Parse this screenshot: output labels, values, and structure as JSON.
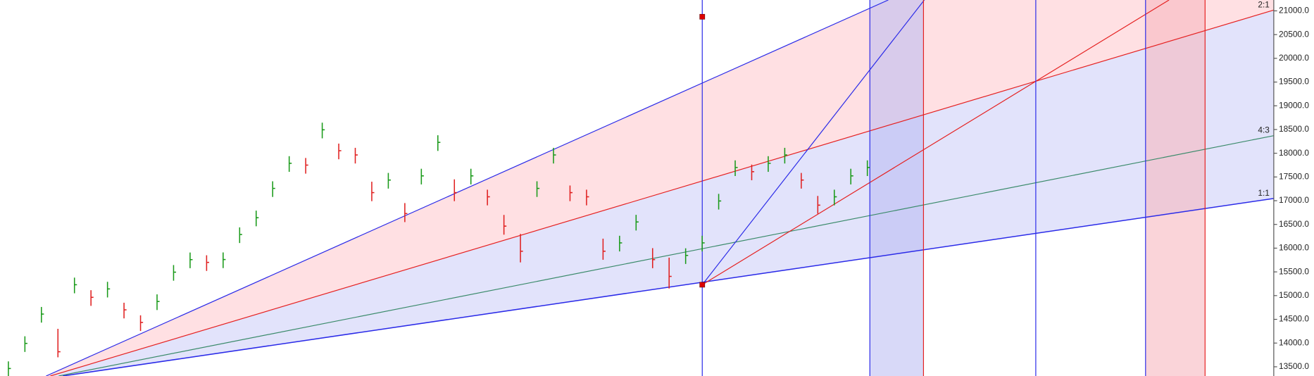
{
  "chart_data": {
    "type": "ohlc",
    "annotations": [
      "2:1",
      "4:3",
      "1:1"
    ],
    "ylim": [
      13306,
      21229
    ],
    "yticks": [
      {
        "value": 13500,
        "label": "13500.0"
      },
      {
        "value": 14000,
        "label": "14000.0"
      },
      {
        "value": 14500,
        "label": "14500.0"
      },
      {
        "value": 15000,
        "label": "15000.0"
      },
      {
        "value": 15500,
        "label": "15500.0"
      },
      {
        "value": 16000,
        "label": "16000.0"
      },
      {
        "value": 16500,
        "label": "16500.0"
      },
      {
        "value": 17000,
        "label": "17000.0"
      },
      {
        "value": 17500,
        "label": "17500.0"
      },
      {
        "value": 18000,
        "label": "18000.0"
      },
      {
        "value": 18500,
        "label": "18500.0"
      },
      {
        "value": 19000,
        "label": "19000.0"
      },
      {
        "value": 19500,
        "label": "19500.0"
      },
      {
        "value": 20000,
        "label": "20000.0"
      },
      {
        "value": 20500,
        "label": "20500.0"
      },
      {
        "value": 21000,
        "label": "21000.0"
      }
    ],
    "up_color": "#1a9a1a",
    "down_color": "#e02020",
    "high": [
      13614,
      14143,
      14761,
      14300,
      15379,
      15114,
      15291,
      14850,
      14585,
      15026,
      15644,
      15908,
      15850,
      15910,
      16438,
      16791,
      17409,
      17938,
      17900,
      18644,
      18203,
      18114,
      17400,
      17585,
      16950,
      17673,
      18379,
      17450,
      17673,
      17232,
      16700,
      16300,
      17409,
      18114,
      17320,
      17232,
      16200,
      16261,
      16702,
      16000,
      15800,
      15997,
      16261,
      17144,
      17850,
      17761,
      17938,
      18114,
      17585,
      17100,
      17232,
      17673,
      17850
    ],
    "low": [
      13284,
      13813,
      14431,
      13700,
      15049,
      14784,
      14961,
      14520,
      14255,
      14696,
      15314,
      15578,
      15520,
      15580,
      16108,
      16461,
      17079,
      17608,
      17570,
      18314,
      17873,
      17784,
      16990,
      17255,
      16549,
      17343,
      18049,
      16990,
      17343,
      16902,
      16284,
      15700,
      17079,
      17784,
      16990,
      16902,
      15755,
      15931,
      16372,
      15578,
      15150,
      15667,
      15931,
      16814,
      17520,
      17431,
      17608,
      17784,
      17255,
      16726,
      16902,
      17343,
      17520
    ],
    "close": [
      13464,
      13993,
      14611,
      13817,
      15229,
      14964,
      15141,
      14700,
      14435,
      14876,
      15494,
      15758,
      15700,
      15760,
      16288,
      16641,
      17259,
      17788,
      17750,
      18494,
      18053,
      17964,
      17170,
      17435,
      16729,
      17523,
      18229,
      17170,
      17523,
      17082,
      16464,
      15935,
      17259,
      17964,
      17170,
      17082,
      15935,
      16111,
      16552,
      15758,
      15405,
      15847,
      16111,
      16994,
      17700,
      17611,
      17788,
      17964,
      17435,
      16906,
      17082,
      17523,
      17700
    ]
  }
}
